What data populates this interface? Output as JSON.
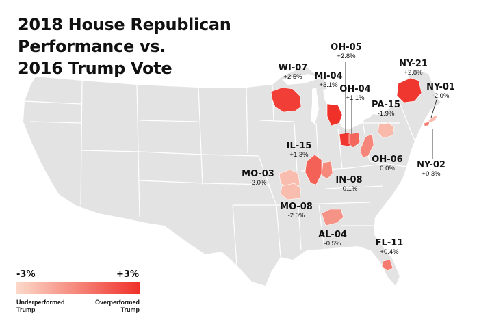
{
  "title_lines": [
    "2018 House Republican",
    "Performance vs.",
    "2016 Trump Vote"
  ],
  "legend": {
    "min_label": "-3%",
    "max_label": "+3%",
    "under_label_line1": "Underperformed",
    "under_label_line2": "Trump",
    "over_label_line1": "Overperformed",
    "over_label_line2": "Trump",
    "min_value": -3,
    "max_value": 3,
    "color_low": "#fbd9c9",
    "color_high": "#f0312a"
  },
  "colors": {
    "land": "#e3e3e3",
    "state_border": "#ffffff",
    "leader_line": "#111111"
  },
  "districts": [
    {
      "code": "WI-07",
      "value": 2.5,
      "label": "+2.5%"
    },
    {
      "code": "MI-04",
      "value": 3.1,
      "label": "+3.1%"
    },
    {
      "code": "OH-05",
      "value": 2.8,
      "label": "+2.8%"
    },
    {
      "code": "OH-04",
      "value": 1.1,
      "label": "+1.1%"
    },
    {
      "code": "NY-21",
      "value": 2.8,
      "label": "+2.8%"
    },
    {
      "code": "NY-01",
      "value": -2.0,
      "label": "-2.0%"
    },
    {
      "code": "PA-15",
      "value": -1.9,
      "label": "-1.9%"
    },
    {
      "code": "IL-15",
      "value": 1.3,
      "label": "+1.3%"
    },
    {
      "code": "OH-06",
      "value": 0.0,
      "label": "0.0%"
    },
    {
      "code": "NY-02",
      "value": 0.3,
      "label": "+0.3%"
    },
    {
      "code": "MO-03",
      "value": -2.0,
      "label": "-2.0%"
    },
    {
      "code": "IN-08",
      "value": -0.1,
      "label": "-0.1%"
    },
    {
      "code": "MO-08",
      "value": -2.0,
      "label": "-2.0%"
    },
    {
      "code": "AL-04",
      "value": -0.5,
      "label": "-0.5%"
    },
    {
      "code": "FL-11",
      "value": 0.4,
      "label": "+0.4%"
    }
  ]
}
